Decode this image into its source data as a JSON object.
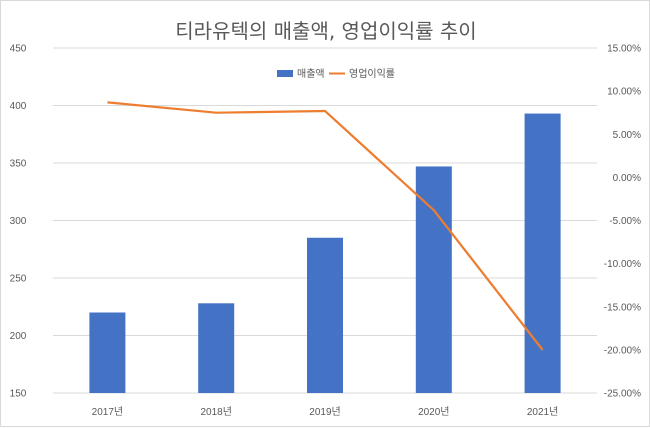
{
  "chart_data": {
    "type": "bar+line",
    "title": "티라유텍의 매출액, 영업이익률 추이",
    "categories": [
      "2017년",
      "2018년",
      "2019년",
      "2020년",
      "2021년"
    ],
    "series": [
      {
        "name": "매출액",
        "type": "bar",
        "axis": "left",
        "values": [
          220,
          228,
          285,
          347,
          393
        ],
        "color": "#4472C4"
      },
      {
        "name": "영업이익률",
        "type": "line",
        "axis": "right",
        "values": [
          8.7,
          7.5,
          7.7,
          -3.8,
          -20.0
        ],
        "color": "#ED7D31"
      }
    ],
    "left_axis": {
      "min": 150,
      "max": 450,
      "step": 50,
      "tick_labels": [
        "150",
        "200",
        "250",
        "300",
        "350",
        "400",
        "450"
      ]
    },
    "right_axis": {
      "min": -25,
      "max": 15,
      "step": 5,
      "tick_labels": [
        "-25.00%",
        "-20.00%",
        "-15.00%",
        "-10.00%",
        "-5.00%",
        "0.00%",
        "5.00%",
        "10.00%",
        "15.00%"
      ]
    },
    "grid": true,
    "legend": "top-center",
    "gridline_color": "#d9d9d9"
  }
}
